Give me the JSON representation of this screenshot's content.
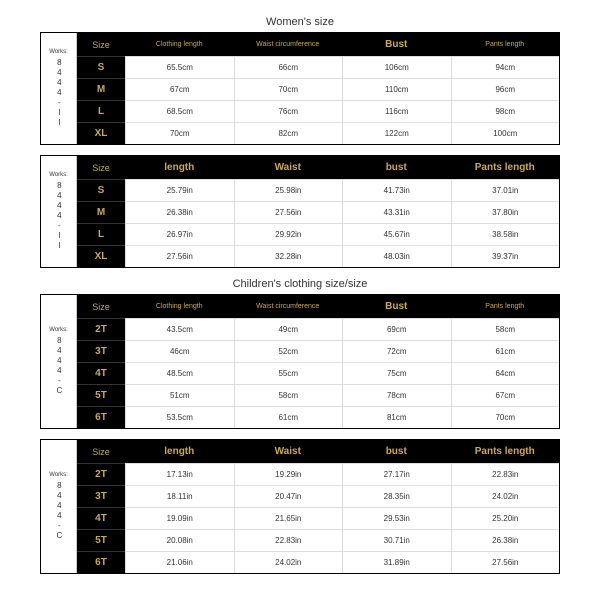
{
  "colors": {
    "header_bg": "#000000",
    "header_text": "#c9a959",
    "cell_bg": "#ffffff",
    "cell_text": "#333333",
    "cell_border": "#dddddd"
  },
  "sections": [
    {
      "title": "Women's size",
      "side_top": "Works:",
      "side_code": "8444-II",
      "headers": [
        "Size",
        "Clothing length",
        "Waist circumference",
        "Bust",
        "Pants length"
      ],
      "header_big": [
        false,
        false,
        false,
        true,
        false
      ],
      "rows": [
        [
          "S",
          "65.5cm",
          "66cm",
          "106cm",
          "94cm"
        ],
        [
          "M",
          "67cm",
          "70cm",
          "110cm",
          "96cm"
        ],
        [
          "L",
          "68.5cm",
          "76cm",
          "116cm",
          "98cm"
        ],
        [
          "XL",
          "70cm",
          "82cm",
          "122cm",
          "100cm"
        ]
      ]
    },
    {
      "title": "",
      "side_top": "Works:",
      "side_code": "8444-II",
      "headers": [
        "Size",
        "length",
        "Waist",
        "bust",
        "Pants length"
      ],
      "header_big": [
        false,
        true,
        true,
        true,
        true
      ],
      "rows": [
        [
          "S",
          "25.79in",
          "25.98in",
          "41.73in",
          "37.01in"
        ],
        [
          "M",
          "26.38in",
          "27.56in",
          "43.31in",
          "37.80in"
        ],
        [
          "L",
          "26.97in",
          "29.92in",
          "45.67in",
          "38.58in"
        ],
        [
          "XL",
          "27.56in",
          "32.28in",
          "48.03in",
          "39.37in"
        ]
      ]
    },
    {
      "title": "Children's clothing size/size",
      "side_top": "Works:",
      "side_code": "8444-C",
      "headers": [
        "Size",
        "Clothing length",
        "Waist circumference",
        "Bust",
        "Pants length"
      ],
      "header_big": [
        false,
        false,
        false,
        true,
        false
      ],
      "rows": [
        [
          "2T",
          "43.5cm",
          "49cm",
          "69cm",
          "58cm"
        ],
        [
          "3T",
          "46cm",
          "52cm",
          "72cm",
          "61cm"
        ],
        [
          "4T",
          "48.5cm",
          "55cm",
          "75cm",
          "64cm"
        ],
        [
          "5T",
          "51cm",
          "58cm",
          "78cm",
          "67cm"
        ],
        [
          "6T",
          "53.5cm",
          "61cm",
          "81cm",
          "70cm"
        ]
      ]
    },
    {
      "title": "",
      "side_top": "Works:",
      "side_code": "8444-C",
      "headers": [
        "Size",
        "length",
        "Waist",
        "bust",
        "Pants length"
      ],
      "header_big": [
        false,
        true,
        true,
        true,
        true
      ],
      "rows": [
        [
          "2T",
          "17.13in",
          "19.29in",
          "27.17in",
          "22.83in"
        ],
        [
          "3T",
          "18.11in",
          "20.47in",
          "28.35in",
          "24.02in"
        ],
        [
          "4T",
          "19.09in",
          "21.65in",
          "29.53in",
          "25.20in"
        ],
        [
          "5T",
          "20.08in",
          "22.83in",
          "30.71in",
          "26.38in"
        ],
        [
          "6T",
          "21.06in",
          "24.02in",
          "31.89in",
          "27.56in"
        ]
      ]
    }
  ]
}
